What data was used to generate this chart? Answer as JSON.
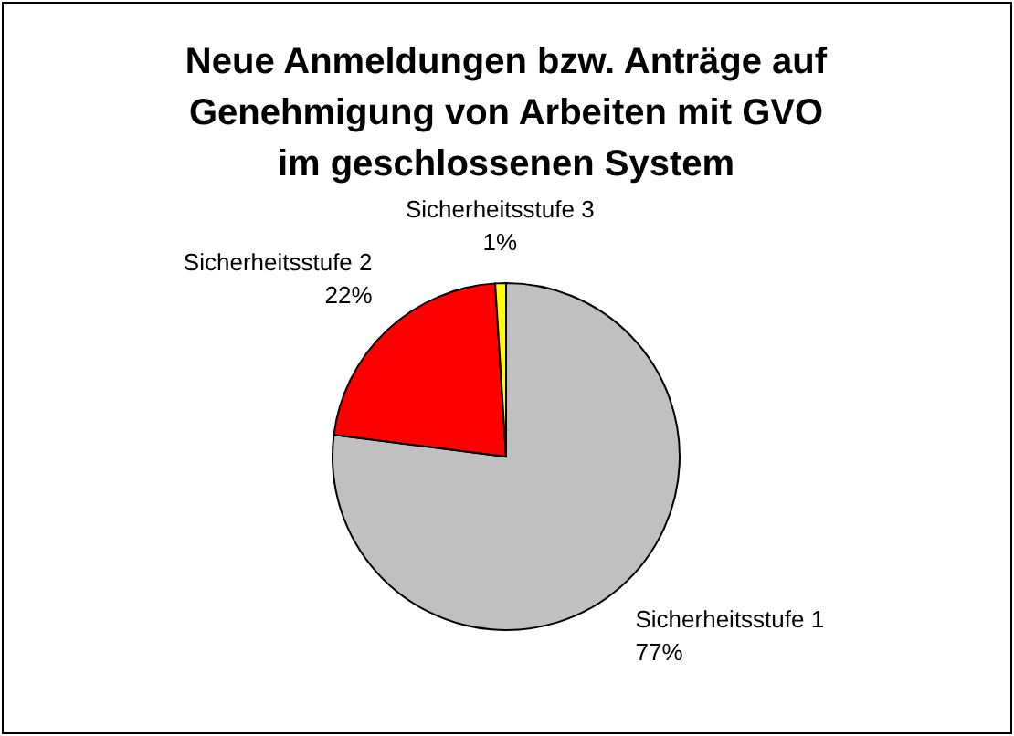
{
  "chart_data": {
    "type": "pie",
    "title": "Neue Anmeldungen bzw. Anträge auf\nGenehmigung von Arbeiten mit GVO\nim geschlossenen System",
    "categories": [
      "Sicherheitsstufe 1",
      "Sicherheitsstufe 2",
      "Sicherheitsstufe 3"
    ],
    "values": [
      77,
      22,
      1
    ],
    "colors": [
      "#c0c0c0",
      "#ff0000",
      "#ffff00"
    ],
    "value_labels": [
      "77%",
      "22%",
      "1%"
    ]
  }
}
